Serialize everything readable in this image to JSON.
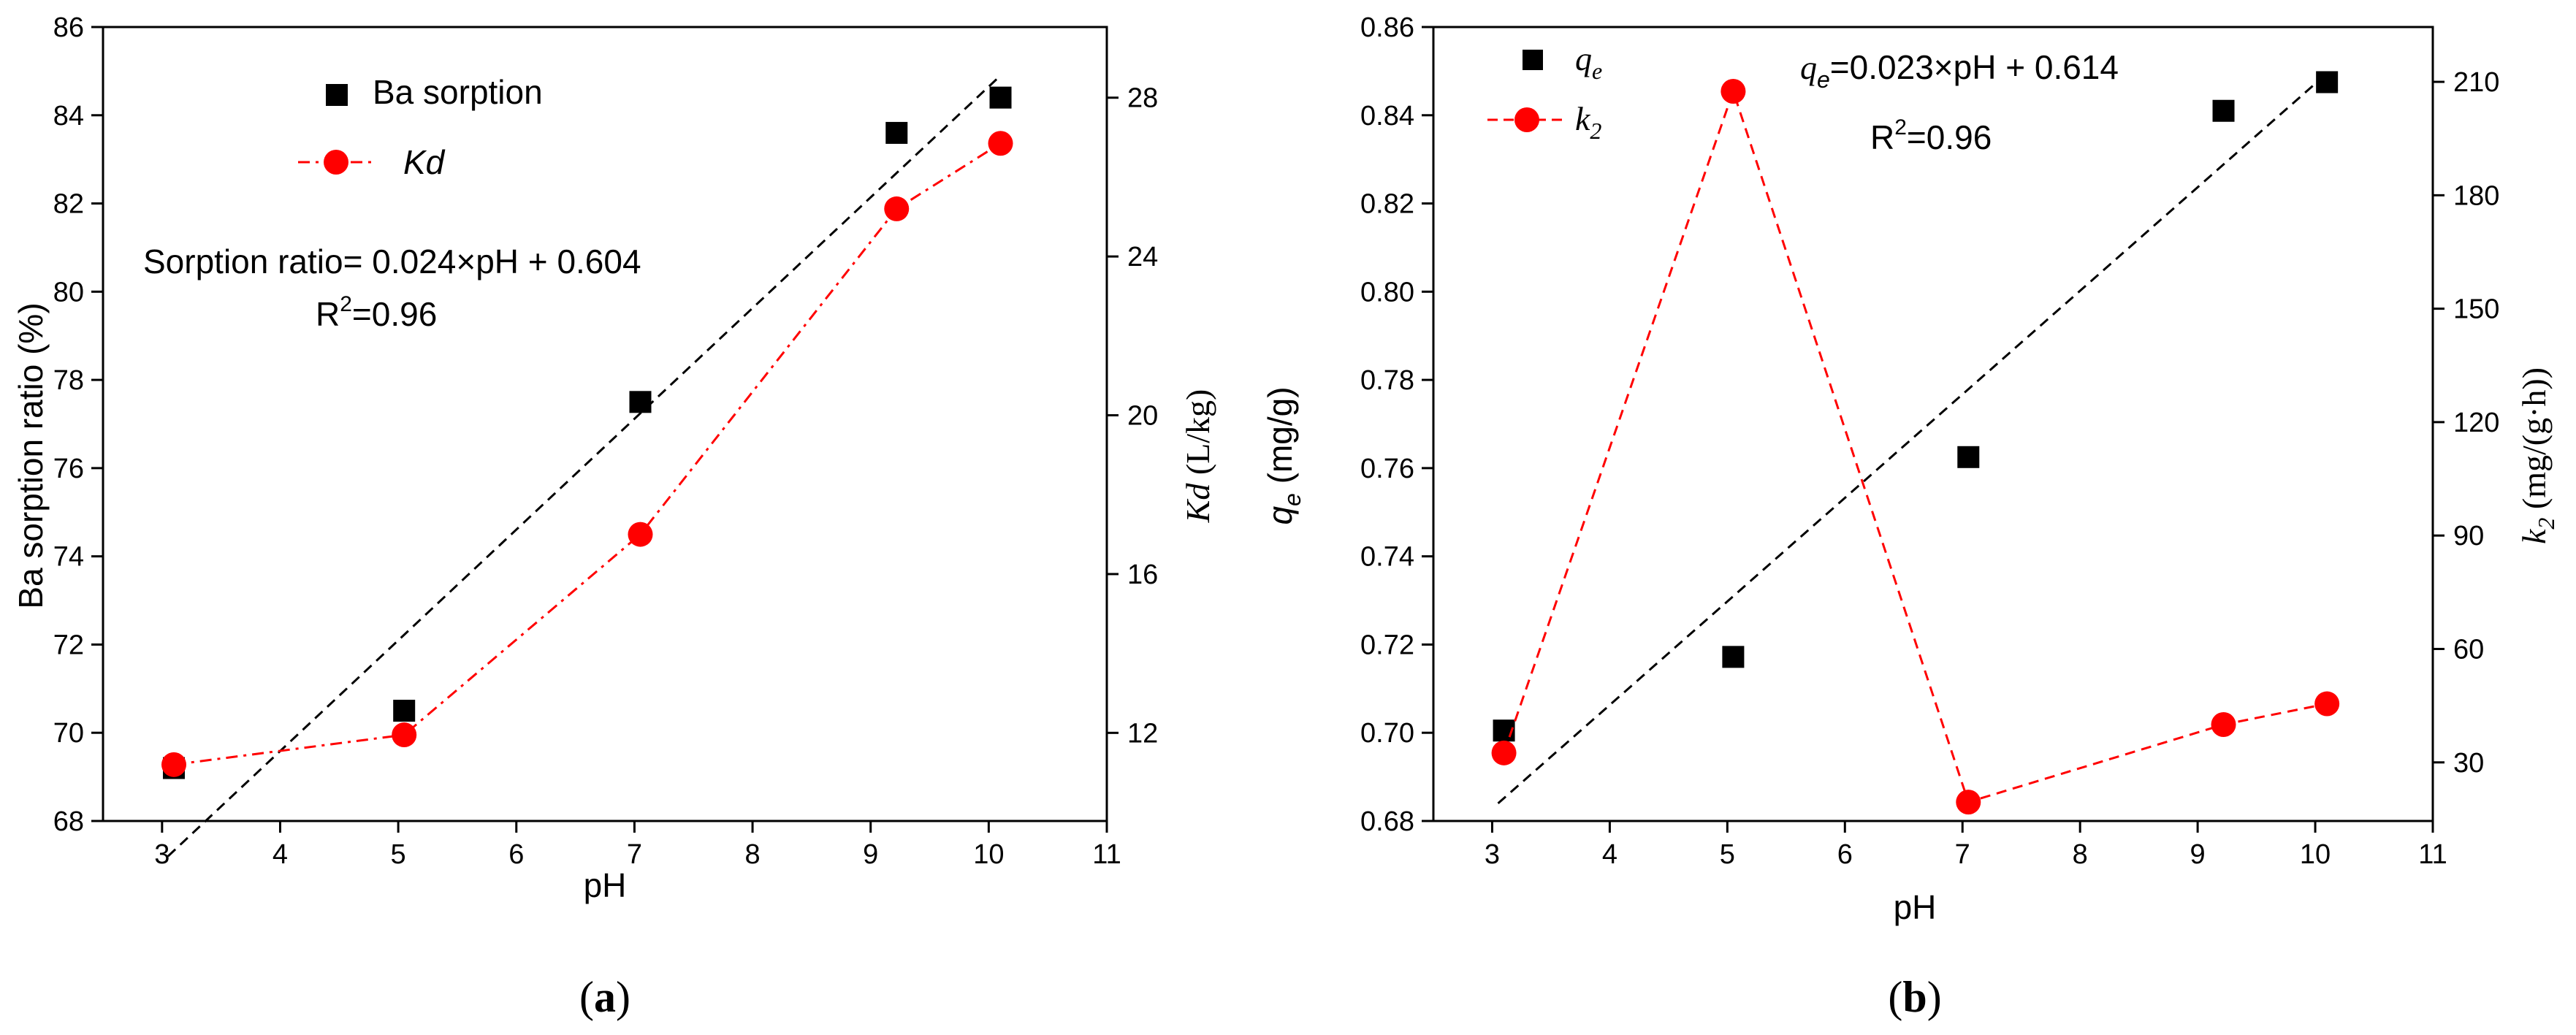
{
  "chart_data": [
    {
      "type": "scatter",
      "panel_label": "(a)",
      "panel_letter": "a",
      "xlabel": "pH",
      "ylabel": "Ba sorption ratio (%)",
      "y2label_italic": "Kd",
      "y2label_rest": " (L/kg)",
      "xlim": [
        2.5,
        11
      ],
      "xticks": [
        3,
        4,
        5,
        6,
        7,
        8,
        9,
        10,
        11
      ],
      "ylim": [
        68,
        86
      ],
      "yticks": [
        68,
        70,
        72,
        74,
        76,
        78,
        80,
        82,
        84,
        86
      ],
      "y2lim": [
        9.78,
        29.78
      ],
      "y2ticks": [
        12,
        16,
        20,
        24,
        28
      ],
      "series": [
        {
          "name": "Ba sorption",
          "axis": "left",
          "marker": "square",
          "color": "#000000",
          "x": [
            3.1,
            5.05,
            7.05,
            9.22,
            10.1
          ],
          "y": [
            69.2,
            70.5,
            77.5,
            83.6,
            84.4
          ]
        },
        {
          "name": "Kd",
          "axis": "right",
          "marker": "circle",
          "color": "#ff0000",
          "line": "dash-dot",
          "x": [
            3.1,
            5.05,
            7.05,
            9.22,
            10.1
          ],
          "y": [
            11.2,
            11.95,
            17.0,
            25.2,
            26.85
          ]
        }
      ],
      "fit": {
        "axis": "left",
        "color": "#000000",
        "style": "dashed",
        "x": [
          3.05,
          10.1
        ],
        "y": [
          67.2,
          84.9
        ]
      },
      "legend": [
        {
          "label": "Ba sorption",
          "italic": false
        },
        {
          "label": "Kd",
          "italic": true
        }
      ],
      "annotations": {
        "equation": "Sorption ratio= 0.024×pH + 0.604",
        "r2_base": "R",
        "r2_sup": "2",
        "r2_tail": "=0.96"
      }
    },
    {
      "type": "scatter",
      "panel_label": "(b)",
      "panel_letter": "b",
      "xlabel": "pH",
      "ylabel_italic": "q",
      "ylabel_sub": "e",
      "ylabel_rest": " (mg/g)",
      "y2label_italic": "k",
      "y2label_sub": "2",
      "y2label_rest": " (mg/(g·h))",
      "xlim": [
        2.5,
        11
      ],
      "xticks": [
        3,
        4,
        5,
        6,
        7,
        8,
        9,
        10,
        11
      ],
      "ylim": [
        0.68,
        0.86
      ],
      "yticks": [
        0.68,
        0.7,
        0.72,
        0.74,
        0.76,
        0.78,
        0.8,
        0.82,
        0.84,
        0.86
      ],
      "ytick_labels": [
        "0.68",
        "0.70",
        "0.72",
        "0.74",
        "0.76",
        "0.78",
        "0.80",
        "0.82",
        "0.84",
        "0.86"
      ],
      "y2lim": [
        14.5,
        224.5
      ],
      "y2ticks": [
        30,
        60,
        90,
        120,
        150,
        180,
        210
      ],
      "series": [
        {
          "name": "qe",
          "axis": "left",
          "marker": "square",
          "color": "#000000",
          "x": [
            3.1,
            5.05,
            7.05,
            9.22,
            10.1
          ],
          "y": [
            0.7005,
            0.7172,
            0.7625,
            0.841,
            0.8475
          ]
        },
        {
          "name": "k2",
          "axis": "right",
          "marker": "circle",
          "color": "#ff0000",
          "line": "dashed",
          "x": [
            3.1,
            5.05,
            7.05,
            9.22,
            10.1
          ],
          "y": [
            32.5,
            207.5,
            19.5,
            40.0,
            45.5
          ]
        }
      ],
      "fit": {
        "axis": "left",
        "color": "#000000",
        "style": "dashed",
        "x": [
          3.05,
          10.1
        ],
        "y": [
          0.684,
          0.8495
        ]
      },
      "legend": [
        {
          "label": "q",
          "sub": "e"
        },
        {
          "label": "k",
          "sub": "2"
        }
      ],
      "annotations": {
        "eq_q": "q",
        "eq_sub": "e",
        "eq_rest": "=0.023×pH + 0.614",
        "r2_base": "R",
        "r2_sup": "2",
        "r2_tail": "=0.96"
      }
    }
  ]
}
